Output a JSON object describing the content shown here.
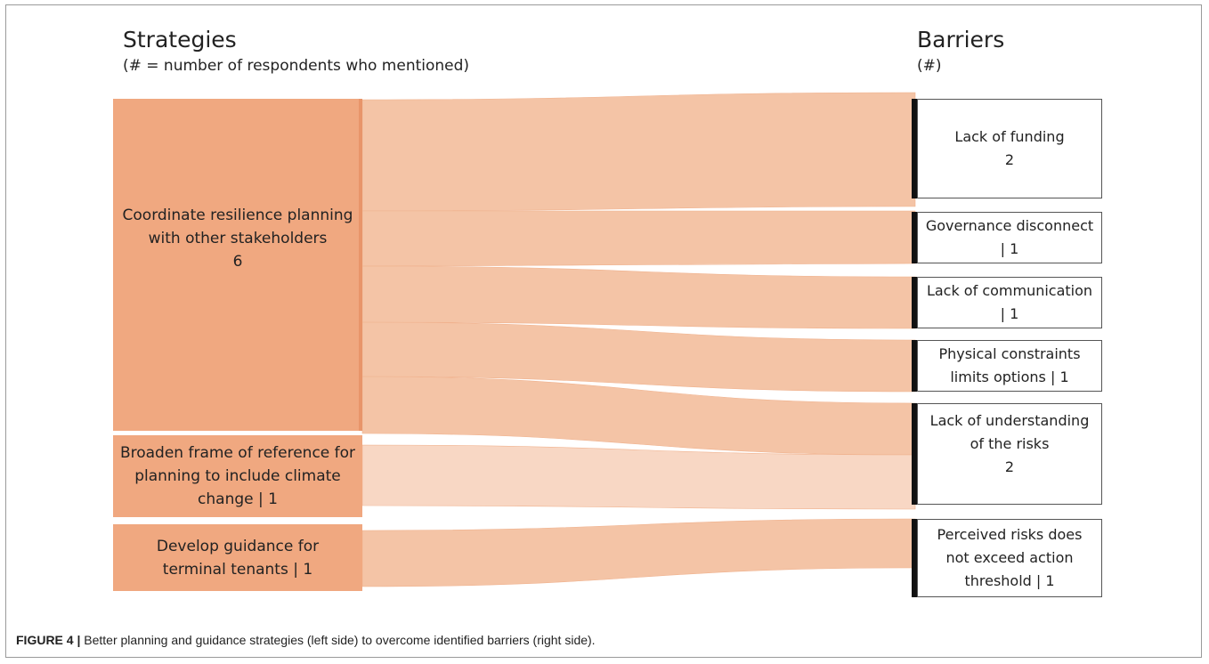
{
  "headers": {
    "left_title": "Strategies",
    "left_subtitle": "(# = number of respondents who mentioned)",
    "right_title": "Barriers",
    "right_subtitle": "(#)"
  },
  "strategies": [
    {
      "id": "coordinate",
      "lines": [
        "Coordinate resilience planning",
        "with other stakeholders",
        "6"
      ]
    },
    {
      "id": "broaden",
      "lines": [
        "Broaden frame of reference for",
        "planning to include climate",
        "change |  1"
      ]
    },
    {
      "id": "guidance",
      "lines": [
        "Develop guidance for",
        "terminal tenants  |  1"
      ]
    }
  ],
  "barriers": [
    {
      "id": "funding",
      "lines": [
        "Lack of funding",
        "2"
      ]
    },
    {
      "id": "governance",
      "lines": [
        "Governance disconnect",
        "|  1"
      ]
    },
    {
      "id": "communication",
      "lines": [
        "Lack of communication",
        "|  1"
      ]
    },
    {
      "id": "physical",
      "lines": [
        "Physical constraints",
        "limits options |  1"
      ]
    },
    {
      "id": "understanding",
      "lines": [
        "Lack of understanding",
        "of the risks",
        "2"
      ]
    },
    {
      "id": "perceived",
      "lines": [
        "Perceived risks does",
        "not exceed action",
        "threshold  |  1"
      ]
    }
  ],
  "links": [
    {
      "source": "coordinate",
      "target": "funding",
      "value": 2
    },
    {
      "source": "coordinate",
      "target": "governance",
      "value": 1
    },
    {
      "source": "coordinate",
      "target": "communication",
      "value": 1
    },
    {
      "source": "coordinate",
      "target": "physical",
      "value": 1
    },
    {
      "source": "coordinate",
      "target": "understanding",
      "value": 1
    },
    {
      "source": "broaden",
      "target": "understanding",
      "value": 1
    },
    {
      "source": "guidance",
      "target": "perceived",
      "value": 1
    }
  ],
  "colors": {
    "strategy_fill": "#f0a880",
    "flow_fill": "#f4c4a6",
    "flow_light": "#f8d7c4",
    "barrier_bar": "#111111"
  },
  "caption": {
    "label": "FIGURE 4 |",
    "text": " Better planning and guidance strategies (left side) to overcome identified barriers (right side)."
  }
}
